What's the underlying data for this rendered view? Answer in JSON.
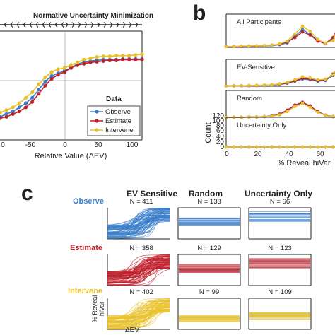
{
  "colors": {
    "observe": "#3a7dc8",
    "estimate": "#c0202c",
    "intervene": "#e8c12a",
    "axis": "#222222",
    "refline": "#aaaaaa"
  },
  "panel_labels": {
    "b": "b",
    "c": "c"
  },
  "panel_a": {
    "top_label": "Normative Uncertainty Minimization",
    "xlabel": "Relative Value (ΔEV)",
    "xticks": [
      "0",
      "-50",
      "0",
      "50",
      "100"
    ],
    "legend_title": "Data"
  },
  "panel_b": {
    "xlabel": "% Reveal hiVar",
    "ylabel": "Count",
    "subplots": [
      "All Participants",
      "EV-Sensitive",
      "Random",
      "Uncertainty Only"
    ],
    "yticks": [
      "0",
      "20",
      "40",
      "60",
      "80",
      "100",
      "120"
    ],
    "xticks": [
      "0",
      "20",
      "40",
      "60"
    ]
  },
  "panel_c": {
    "columns": [
      "EV Sensitive",
      "Random",
      "Uncertainty Only"
    ],
    "rows": [
      "Observe",
      "Estimate",
      "Intervene"
    ],
    "counts": [
      [
        "N = 411",
        "N = 133",
        "N = 66"
      ],
      [
        "N = 358",
        "N = 129",
        "N = 123"
      ],
      [
        "N = 402",
        "N = 99",
        "N = 109"
      ]
    ],
    "ylabel_line1": "% Reveal",
    "ylabel_line2": "hiVar",
    "xlabel": "ΔEV"
  },
  "chart_data": [
    {
      "type": "line",
      "panel": "a",
      "x": [
        -110,
        -100,
        -90,
        -80,
        -70,
        -60,
        -50,
        -40,
        -30,
        -20,
        -10,
        0,
        10,
        20,
        30,
        40,
        50,
        60,
        70,
        80,
        90,
        100,
        110
      ],
      "series": [
        {
          "name": "Observe",
          "values": [
            0.27,
            0.29,
            0.31,
            0.34,
            0.37,
            0.41,
            0.47,
            0.53,
            0.57,
            0.59,
            0.61,
            0.63,
            0.66,
            0.67,
            0.68,
            0.685,
            0.69,
            0.69,
            0.69,
            0.695,
            0.695,
            0.695,
            0.695
          ]
        },
        {
          "name": "Estimate",
          "values": [
            0.26,
            0.27,
            0.29,
            0.31,
            0.34,
            0.38,
            0.44,
            0.5,
            0.55,
            0.58,
            0.6,
            0.63,
            0.65,
            0.66,
            0.67,
            0.675,
            0.68,
            0.685,
            0.685,
            0.69,
            0.69,
            0.69,
            0.69
          ]
        },
        {
          "name": "Intervene",
          "values": [
            0.3,
            0.32,
            0.34,
            0.37,
            0.41,
            0.45,
            0.51,
            0.56,
            0.6,
            0.62,
            0.63,
            0.65,
            0.67,
            0.69,
            0.7,
            0.71,
            0.715,
            0.715,
            0.72,
            0.72,
            0.72,
            0.725,
            0.73
          ]
        }
      ],
      "xlim": [
        -110,
        110
      ],
      "ylim": [
        0.1,
        0.9
      ]
    },
    {
      "type": "line",
      "panel": "b",
      "x": [
        0,
        5,
        10,
        15,
        20,
        25,
        30,
        35,
        40,
        45,
        50,
        55,
        60,
        65,
        70,
        75
      ],
      "ylim": [
        0,
        120
      ],
      "subplots": [
        {
          "title": "All Participants",
          "series": [
            {
              "name": "Observe",
              "values": [
                2,
                2,
                2,
                2,
                3,
                3,
                4,
                6,
                10,
                25,
                40,
                30,
                15,
                8,
                20,
                55
              ]
            },
            {
              "name": "Estimate",
              "values": [
                2,
                2,
                2,
                3,
                3,
                4,
                5,
                7,
                12,
                22,
                35,
                28,
                14,
                9,
                22,
                60
              ]
            },
            {
              "name": "Intervene",
              "values": [
                2,
                2,
                3,
                3,
                4,
                4,
                5,
                8,
                14,
                30,
                48,
                36,
                18,
                10,
                15,
                65
              ]
            }
          ]
        },
        {
          "title": "EV-Sensitive",
          "series": [
            {
              "name": "Observe",
              "values": [
                1,
                1,
                1,
                1,
                2,
                2,
                3,
                5,
                8,
                14,
                20,
                18,
                14,
                16,
                30,
                60
              ]
            },
            {
              "name": "Estimate",
              "values": [
                1,
                1,
                1,
                2,
                2,
                3,
                4,
                6,
                9,
                15,
                22,
                20,
                16,
                18,
                34,
                62
              ]
            },
            {
              "name": "Intervene",
              "values": [
                1,
                1,
                1,
                2,
                3,
                3,
                4,
                7,
                11,
                18,
                26,
                23,
                18,
                20,
                32,
                70
              ]
            }
          ]
        },
        {
          "title": "Random",
          "series": [
            {
              "name": "Observe",
              "values": [
                0,
                0,
                0,
                1,
                1,
                2,
                4,
                8,
                18,
                32,
                40,
                30,
                15,
                6,
                2,
                0
              ]
            },
            {
              "name": "Estimate",
              "values": [
                0,
                0,
                0,
                1,
                1,
                2,
                4,
                9,
                20,
                34,
                42,
                32,
                16,
                6,
                2,
                0
              ]
            },
            {
              "name": "Intervene",
              "values": [
                0,
                0,
                0,
                1,
                1,
                2,
                3,
                7,
                16,
                30,
                38,
                28,
                14,
                5,
                2,
                0
              ]
            }
          ]
        },
        {
          "title": "Uncertainty Only",
          "series": [
            {
              "name": "Observe",
              "values": [
                0,
                0,
                0,
                0,
                0,
                0,
                0,
                0,
                0,
                0,
                0,
                0,
                0,
                0,
                0,
                0
              ]
            },
            {
              "name": "Estimate",
              "values": [
                0,
                0,
                0,
                0,
                0,
                0,
                0,
                0,
                0,
                0,
                0,
                0,
                0,
                0,
                0,
                0
              ]
            },
            {
              "name": "Intervene",
              "values": [
                0,
                0,
                0,
                0,
                0,
                0,
                0,
                0,
                0,
                0,
                0,
                0,
                0,
                0,
                0,
                0
              ]
            }
          ]
        }
      ]
    }
  ]
}
